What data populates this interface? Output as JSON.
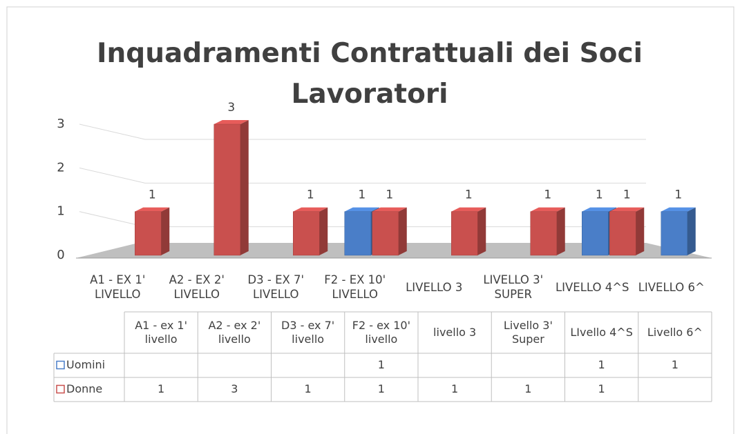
{
  "chart_data": {
    "type": "bar3d",
    "title": "Inquadramenti Contrattuali dei Soci Lavoratori",
    "categories": [
      "A1 - EX 1' LIVELLO",
      "A2 - EX 2' LIVELLO",
      "D3 - EX 7' LIVELLO",
      "F2 - EX 10' LIVELLO",
      "LIVELLO 3",
      "LIVELLO 3' SUPER",
      "LIVELLO 4^S",
      "LIVELLO 6^"
    ],
    "table_categories": [
      "A1 - ex 1' livello",
      "A2 - ex 2' livello",
      "D3 - ex 7' livello",
      "F2 - ex 10' livello",
      "livello 3",
      "Livello 3' Super",
      "LIvello 4^S",
      "Livello 6^"
    ],
    "series": [
      {
        "name": "Uomini",
        "color": "#4a7ec8",
        "values": [
          null,
          null,
          null,
          1,
          null,
          null,
          1,
          1
        ]
      },
      {
        "name": "Donne",
        "color": "#c9504e",
        "values": [
          1,
          3,
          1,
          1,
          1,
          1,
          1,
          null
        ]
      }
    ],
    "ylim": [
      0,
      3
    ],
    "yticks": [
      0,
      1,
      2,
      3
    ],
    "grid": true
  }
}
